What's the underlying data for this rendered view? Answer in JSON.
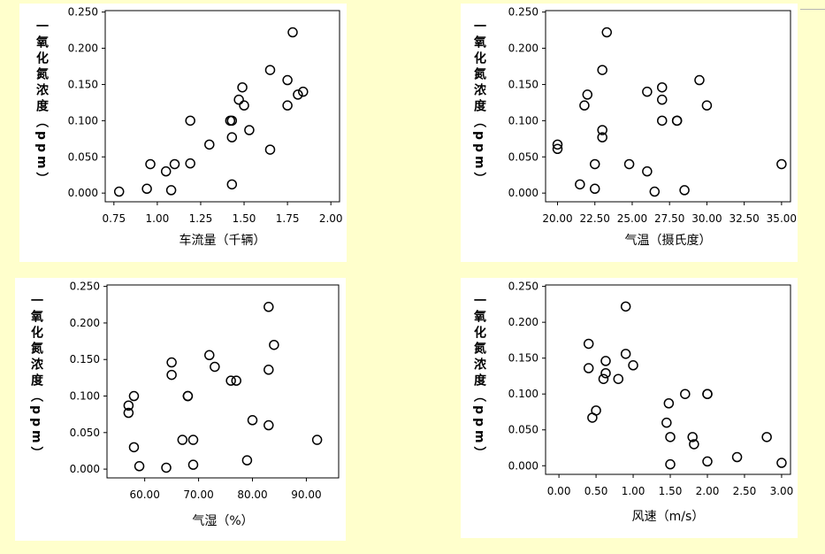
{
  "chart_data": [
    {
      "type": "scatter",
      "ylabel": "一氧化氮浓度（ppm）",
      "xlabel": "车流量（千辆）",
      "xlim": [
        0.7,
        2.05
      ],
      "ylim": [
        -0.012,
        0.252
      ],
      "xticks": [
        "0.75",
        "1.00",
        "1.25",
        "1.50",
        "1.75",
        "2.00"
      ],
      "yticks": [
        "0.000",
        "0.050",
        "0.100",
        "0.150",
        "0.200",
        "0.250"
      ],
      "points": [
        [
          0.78,
          0.002
        ],
        [
          0.94,
          0.006
        ],
        [
          0.96,
          0.04
        ],
        [
          1.05,
          0.03
        ],
        [
          1.08,
          0.004
        ],
        [
          1.1,
          0.04
        ],
        [
          1.19,
          0.041
        ],
        [
          1.19,
          0.1
        ],
        [
          1.3,
          0.067
        ],
        [
          1.43,
          0.012
        ],
        [
          1.43,
          0.077
        ],
        [
          1.43,
          0.1
        ],
        [
          1.42,
          0.1
        ],
        [
          1.47,
          0.129
        ],
        [
          1.49,
          0.146
        ],
        [
          1.5,
          0.121
        ],
        [
          1.53,
          0.087
        ],
        [
          1.65,
          0.06
        ],
        [
          1.65,
          0.17
        ],
        [
          1.75,
          0.121
        ],
        [
          1.75,
          0.156
        ],
        [
          1.78,
          0.222
        ],
        [
          1.81,
          0.136
        ],
        [
          1.84,
          0.14
        ]
      ]
    },
    {
      "type": "scatter",
      "ylabel": "一氧化氮浓度（ppm）",
      "xlabel": "气温（摄氏度）",
      "xlim": [
        19.2,
        35.6
      ],
      "ylim": [
        -0.012,
        0.252
      ],
      "xticks": [
        "20.00",
        "22.50",
        "25.00",
        "27.50",
        "30.00",
        "32.50",
        "35.00"
      ],
      "yticks": [
        "0.000",
        "0.050",
        "0.100",
        "0.150",
        "0.200",
        "0.250"
      ],
      "points": [
        [
          20.0,
          0.061
        ],
        [
          20.0,
          0.067
        ],
        [
          21.5,
          0.012
        ],
        [
          21.8,
          0.121
        ],
        [
          22.0,
          0.136
        ],
        [
          22.5,
          0.006
        ],
        [
          22.5,
          0.04
        ],
        [
          23.0,
          0.077
        ],
        [
          23.0,
          0.087
        ],
        [
          23.0,
          0.17
        ],
        [
          23.3,
          0.222
        ],
        [
          24.8,
          0.04
        ],
        [
          26.0,
          0.03
        ],
        [
          26.0,
          0.14
        ],
        [
          26.5,
          0.002
        ],
        [
          27.0,
          0.1
        ],
        [
          27.0,
          0.129
        ],
        [
          27.0,
          0.146
        ],
        [
          28.0,
          0.1
        ],
        [
          28.0,
          0.1
        ],
        [
          28.5,
          0.004
        ],
        [
          29.5,
          0.156
        ],
        [
          30.0,
          0.121
        ],
        [
          35.0,
          0.04
        ]
      ]
    },
    {
      "type": "scatter",
      "ylabel": "一氧化氮浓度（ppm）",
      "xlabel": "气湿（%）",
      "xlim": [
        53.0,
        96.0
      ],
      "ylim": [
        -0.012,
        0.252
      ],
      "xticks": [
        "60.00",
        "70.00",
        "80.00",
        "90.00"
      ],
      "yticks": [
        "0.000",
        "0.050",
        "0.100",
        "0.150",
        "0.200",
        "0.250"
      ],
      "points": [
        [
          57.0,
          0.077
        ],
        [
          57.0,
          0.087
        ],
        [
          58.0,
          0.03
        ],
        [
          58.0,
          0.1
        ],
        [
          59.0,
          0.004
        ],
        [
          64.0,
          0.002
        ],
        [
          65.0,
          0.129
        ],
        [
          65.0,
          0.146
        ],
        [
          67.0,
          0.04
        ],
        [
          68.0,
          0.1
        ],
        [
          68.0,
          0.1
        ],
        [
          69.0,
          0.006
        ],
        [
          69.0,
          0.04
        ],
        [
          72.0,
          0.156
        ],
        [
          73.0,
          0.14
        ],
        [
          76.0,
          0.121
        ],
        [
          77.0,
          0.121
        ],
        [
          79.0,
          0.012
        ],
        [
          80.0,
          0.067
        ],
        [
          83.0,
          0.06
        ],
        [
          83.0,
          0.136
        ],
        [
          83.0,
          0.222
        ],
        [
          84.0,
          0.17
        ],
        [
          92.0,
          0.04
        ]
      ]
    },
    {
      "type": "scatter",
      "ylabel": "一氧化氮浓度（ppm）",
      "xlabel": "风速（m/s）",
      "xlim": [
        -0.18,
        3.12
      ],
      "ylim": [
        -0.012,
        0.252
      ],
      "xticks": [
        "0.00",
        "0.50",
        "1.00",
        "1.50",
        "2.00",
        "2.50",
        "3.00"
      ],
      "yticks": [
        "0.000",
        "0.050",
        "0.100",
        "0.150",
        "0.200",
        "0.250"
      ],
      "points": [
        [
          0.4,
          0.136
        ],
        [
          0.4,
          0.17
        ],
        [
          0.45,
          0.067
        ],
        [
          0.5,
          0.077
        ],
        [
          0.6,
          0.121
        ],
        [
          0.63,
          0.129
        ],
        [
          0.63,
          0.146
        ],
        [
          0.8,
          0.121
        ],
        [
          0.9,
          0.156
        ],
        [
          0.9,
          0.222
        ],
        [
          1.0,
          0.14
        ],
        [
          1.45,
          0.06
        ],
        [
          1.48,
          0.087
        ],
        [
          1.5,
          0.04
        ],
        [
          1.5,
          0.002
        ],
        [
          1.7,
          0.1
        ],
        [
          1.8,
          0.04
        ],
        [
          1.82,
          0.03
        ],
        [
          2.0,
          0.1
        ],
        [
          2.0,
          0.1
        ],
        [
          2.0,
          0.006
        ],
        [
          2.4,
          0.012
        ],
        [
          2.8,
          0.04
        ],
        [
          3.0,
          0.004
        ]
      ]
    }
  ]
}
